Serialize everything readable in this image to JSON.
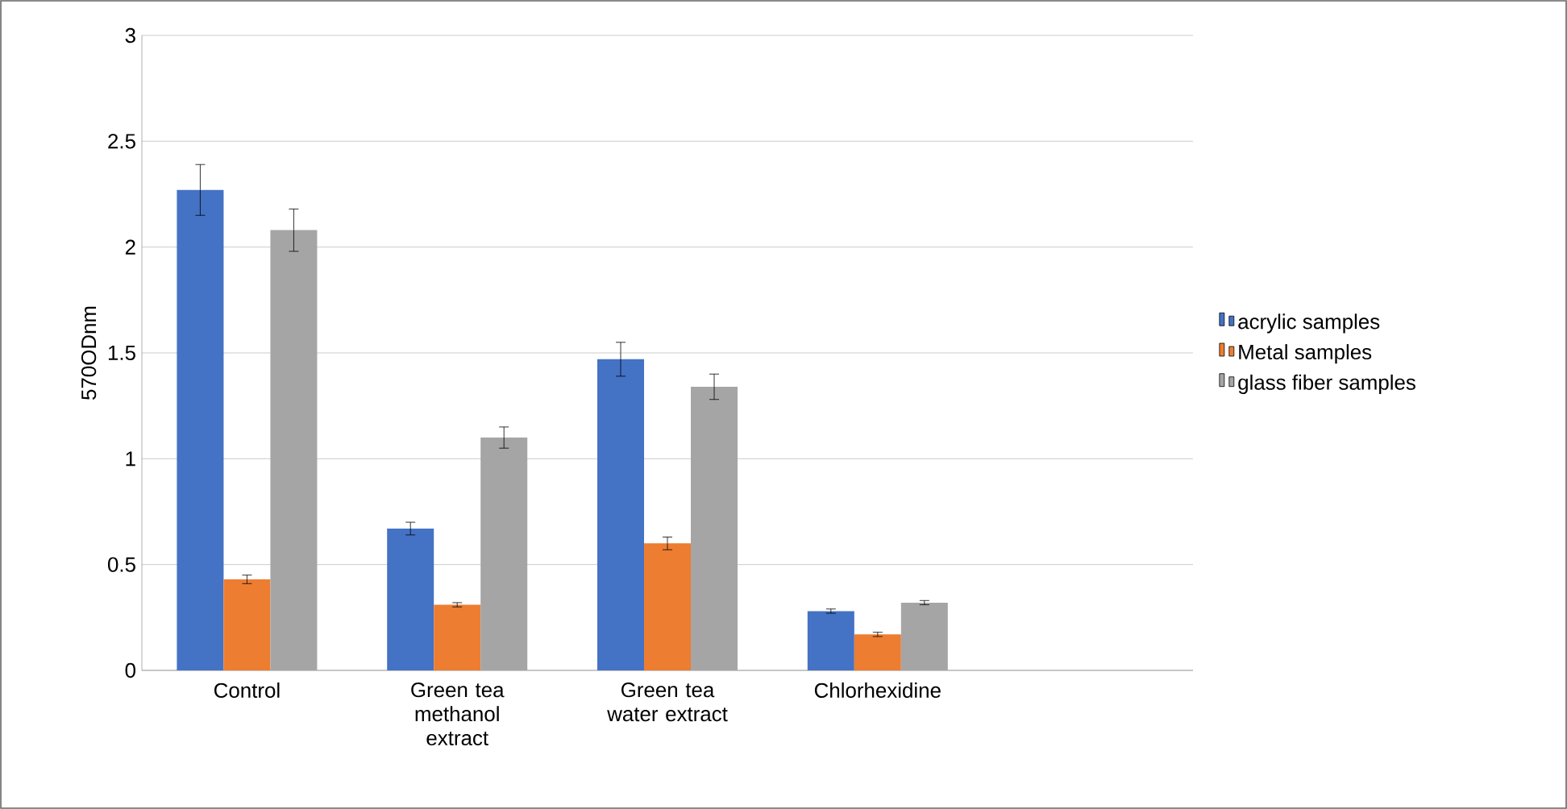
{
  "chart_data": {
    "type": "bar",
    "ylabel": "570ODnm",
    "categories": [
      "Control",
      "Green tea methanol extract",
      "Green tea water  extract",
      "Chlorhexidine",
      null
    ],
    "series": [
      {
        "name": "acrylic samples",
        "color": "#4472c4",
        "values": [
          2.27,
          0.67,
          1.47,
          0.28,
          null
        ],
        "errors": [
          0.12,
          0.03,
          0.08,
          0.01,
          null
        ]
      },
      {
        "name": "Metal samples",
        "color": "#ed7d31",
        "values": [
          0.43,
          0.31,
          0.6,
          0.17,
          null
        ],
        "errors": [
          0.02,
          0.01,
          0.03,
          0.01,
          null
        ]
      },
      {
        "name": "glass fiber samples",
        "color": "#a5a5a5",
        "values": [
          2.08,
          1.1,
          1.34,
          0.32,
          null
        ],
        "errors": [
          0.1,
          0.05,
          0.06,
          0.01,
          null
        ]
      }
    ],
    "ylim": [
      0,
      3
    ],
    "yticks": [
      0,
      0.5,
      1,
      1.5,
      2,
      2.5,
      3
    ],
    "grid": "y",
    "legend": "right"
  }
}
